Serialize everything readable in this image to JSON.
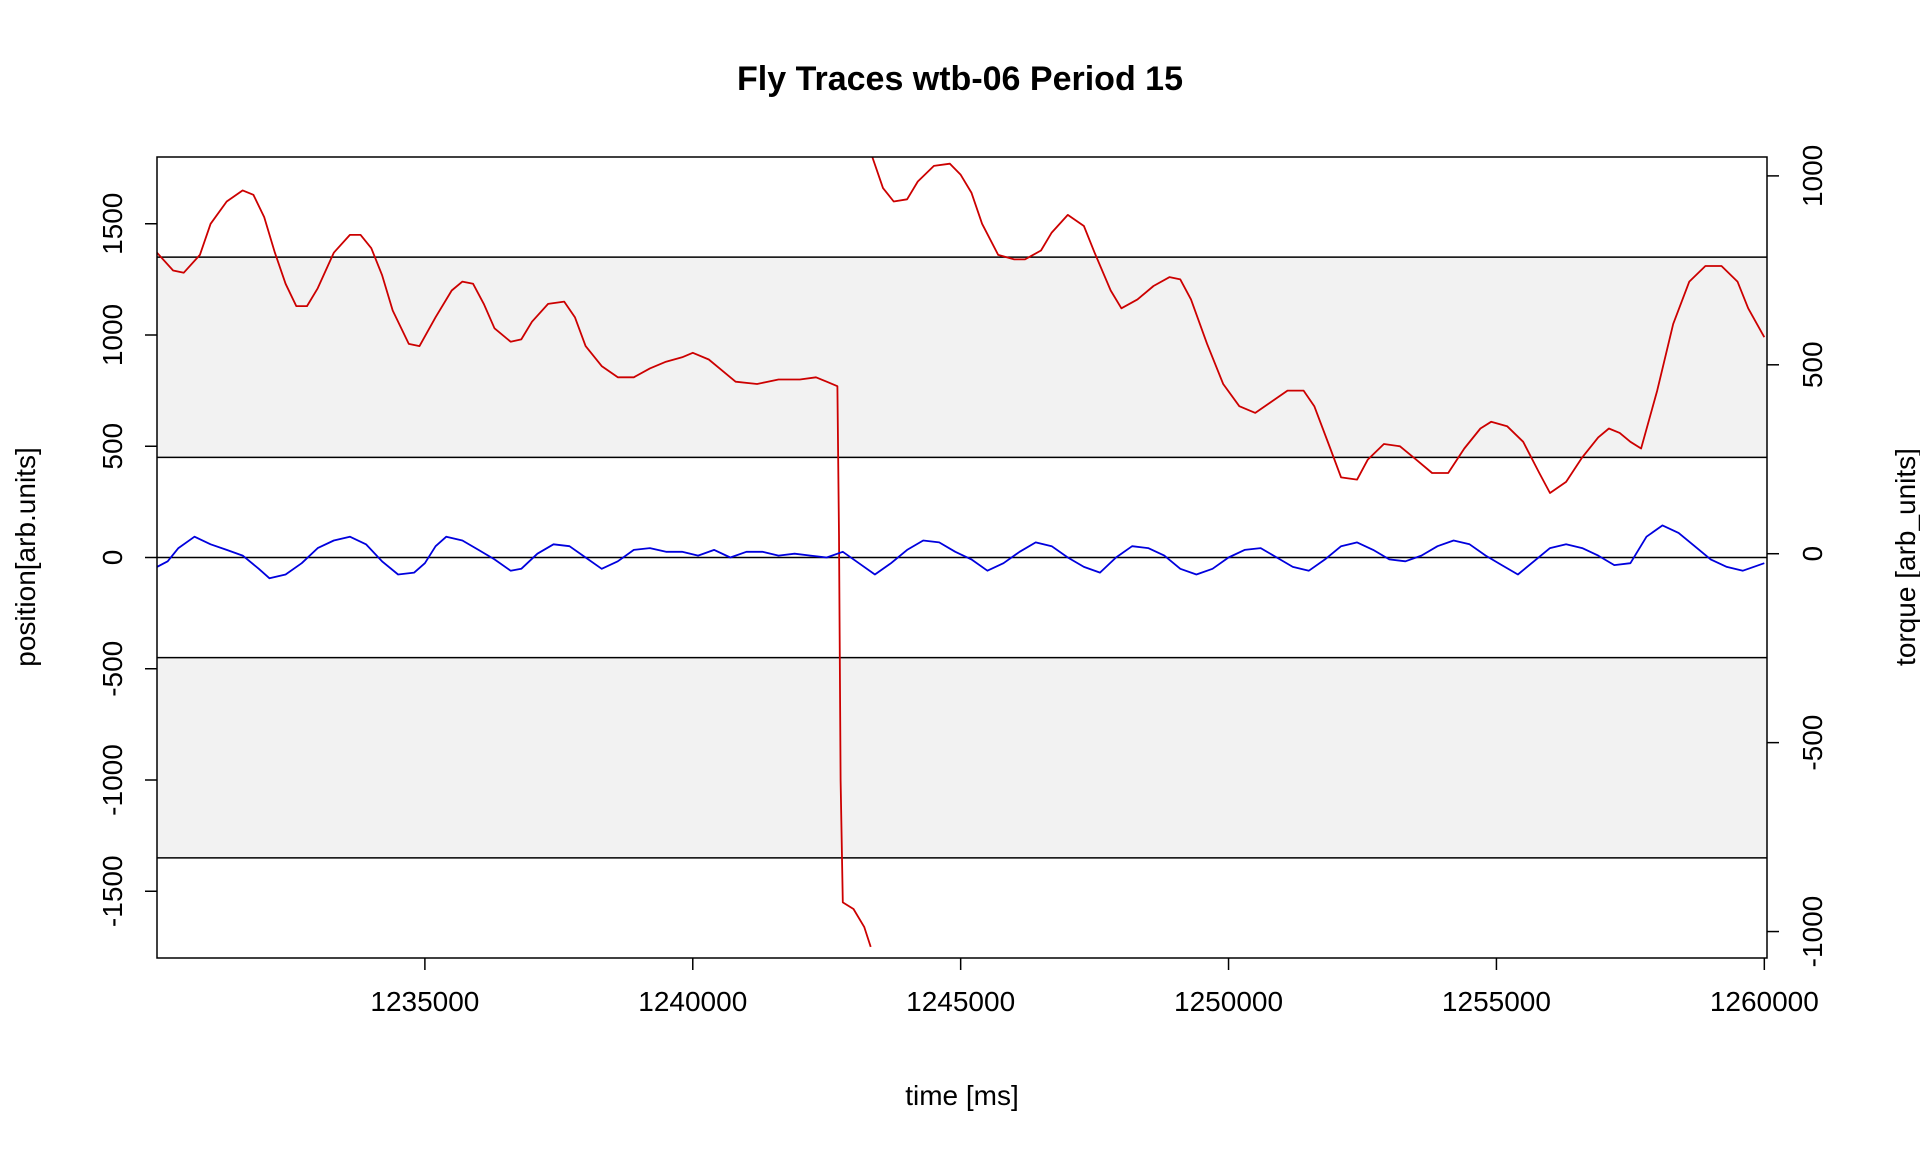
{
  "chart_data": {
    "type": "line",
    "title": "Fly Traces wtb-06 Period 15",
    "xlabel": "time [ms]",
    "ylabel_left": "position[arb.units]",
    "ylabel_right": "torque [arb_units]",
    "xlim": [
      1230000,
      1260050
    ],
    "ylim_left": [
      -1800,
      1800
    ],
    "ylim_right": [
      -1070,
      1050
    ],
    "x_ticks": [
      1235000,
      1240000,
      1245000,
      1250000,
      1255000,
      1260000
    ],
    "x_tick_labels": [
      "1235000",
      "1240000",
      "1245000",
      "1250000",
      "1255000",
      "1260000"
    ],
    "y_left_ticks": [
      -1500,
      -1000,
      -500,
      0,
      500,
      1000,
      1500
    ],
    "y_left_tick_labels": [
      "-1500",
      "-1000",
      "-500",
      "0",
      "500",
      "1000",
      "1500"
    ],
    "y_right_ticks": [
      -1000,
      -500,
      0,
      500,
      1000
    ],
    "y_right_tick_labels": [
      "-1000",
      "-500",
      "0",
      "500",
      "1000"
    ],
    "shaded_bands": [
      [
        450,
        1350
      ],
      [
        -1350,
        -450
      ]
    ],
    "horizontal_lines": [
      1350,
      450,
      0,
      -450,
      -1350
    ],
    "series": [
      {
        "name": "position",
        "color": "#cc0000",
        "axis": "left",
        "segments": [
          [
            [
              1230000,
              1370
            ],
            [
              1230300,
              1290
            ],
            [
              1230500,
              1280
            ],
            [
              1230800,
              1360
            ],
            [
              1231000,
              1500
            ],
            [
              1231300,
              1600
            ],
            [
              1231600,
              1650
            ],
            [
              1231800,
              1630
            ],
            [
              1232000,
              1530
            ],
            [
              1232200,
              1370
            ],
            [
              1232400,
              1230
            ],
            [
              1232600,
              1130
            ],
            [
              1232800,
              1130
            ],
            [
              1233000,
              1210
            ],
            [
              1233300,
              1370
            ],
            [
              1233600,
              1450
            ],
            [
              1233800,
              1450
            ],
            [
              1234000,
              1390
            ],
            [
              1234200,
              1270
            ],
            [
              1234400,
              1110
            ],
            [
              1234700,
              960
            ],
            [
              1234900,
              950
            ],
            [
              1235200,
              1080
            ],
            [
              1235500,
              1200
            ],
            [
              1235700,
              1240
            ],
            [
              1235900,
              1230
            ],
            [
              1236100,
              1140
            ],
            [
              1236300,
              1030
            ],
            [
              1236600,
              970
            ],
            [
              1236800,
              980
            ],
            [
              1237000,
              1060
            ],
            [
              1237300,
              1140
            ],
            [
              1237600,
              1150
            ],
            [
              1237800,
              1080
            ],
            [
              1238000,
              950
            ],
            [
              1238300,
              860
            ],
            [
              1238600,
              810
            ],
            [
              1238900,
              810
            ],
            [
              1239200,
              850
            ],
            [
              1239500,
              880
            ],
            [
              1239800,
              900
            ],
            [
              1240000,
              920
            ],
            [
              1240300,
              890
            ],
            [
              1240500,
              850
            ],
            [
              1240800,
              790
            ],
            [
              1241200,
              780
            ],
            [
              1241600,
              800
            ],
            [
              1242000,
              800
            ],
            [
              1242300,
              810
            ],
            [
              1242500,
              790
            ],
            [
              1242700,
              770
            ],
            [
              1242730,
              100
            ],
            [
              1242760,
              -1000
            ],
            [
              1242800,
              -1550
            ],
            [
              1243000,
              -1580
            ],
            [
              1243200,
              -1660
            ],
            [
              1243320,
              -1750
            ]
          ],
          [
            [
              1243350,
              1800
            ],
            [
              1243550,
              1660
            ],
            [
              1243750,
              1600
            ],
            [
              1244000,
              1610
            ],
            [
              1244200,
              1690
            ],
            [
              1244500,
              1760
            ],
            [
              1244800,
              1770
            ],
            [
              1245000,
              1720
            ],
            [
              1245200,
              1640
            ],
            [
              1245400,
              1500
            ],
            [
              1245700,
              1360
            ],
            [
              1246000,
              1340
            ],
            [
              1246200,
              1340
            ],
            [
              1246500,
              1380
            ],
            [
              1246700,
              1460
            ],
            [
              1247000,
              1540
            ],
            [
              1247300,
              1490
            ],
            [
              1247500,
              1370
            ],
            [
              1247800,
              1200
            ],
            [
              1248000,
              1120
            ],
            [
              1248300,
              1160
            ],
            [
              1248600,
              1220
            ],
            [
              1248900,
              1260
            ],
            [
              1249100,
              1250
            ],
            [
              1249300,
              1160
            ],
            [
              1249600,
              960
            ],
            [
              1249900,
              780
            ],
            [
              1250200,
              680
            ],
            [
              1250500,
              650
            ],
            [
              1250800,
              700
            ],
            [
              1251100,
              750
            ],
            [
              1251400,
              750
            ],
            [
              1251600,
              680
            ],
            [
              1251900,
              490
            ],
            [
              1252100,
              360
            ],
            [
              1252400,
              350
            ],
            [
              1252600,
              440
            ],
            [
              1252900,
              510
            ],
            [
              1253200,
              500
            ],
            [
              1253500,
              440
            ],
            [
              1253800,
              380
            ],
            [
              1254100,
              380
            ],
            [
              1254400,
              490
            ],
            [
              1254700,
              580
            ],
            [
              1254900,
              610
            ],
            [
              1255200,
              590
            ],
            [
              1255500,
              520
            ],
            [
              1255800,
              380
            ],
            [
              1256000,
              290
            ],
            [
              1256300,
              340
            ],
            [
              1256600,
              450
            ],
            [
              1256900,
              540
            ],
            [
              1257100,
              580
            ],
            [
              1257300,
              560
            ],
            [
              1257500,
              520
            ],
            [
              1257700,
              490
            ],
            [
              1258000,
              750
            ],
            [
              1258300,
              1050
            ],
            [
              1258600,
              1240
            ],
            [
              1258900,
              1310
            ],
            [
              1259200,
              1310
            ],
            [
              1259500,
              1240
            ],
            [
              1259700,
              1120
            ],
            [
              1260000,
              990
            ]
          ]
        ]
      },
      {
        "name": "torque",
        "color": "#0000dd",
        "axis": "right",
        "segments": [
          [
            [
              1230000,
              -35
            ],
            [
              1230200,
              -20
            ],
            [
              1230400,
              15
            ],
            [
              1230700,
              45
            ],
            [
              1231000,
              25
            ],
            [
              1231300,
              10
            ],
            [
              1231600,
              -5
            ],
            [
              1231900,
              -40
            ],
            [
              1232100,
              -65
            ],
            [
              1232400,
              -55
            ],
            [
              1232700,
              -25
            ],
            [
              1233000,
              15
            ],
            [
              1233300,
              35
            ],
            [
              1233600,
              45
            ],
            [
              1233900,
              25
            ],
            [
              1234200,
              -20
            ],
            [
              1234500,
              -55
            ],
            [
              1234800,
              -50
            ],
            [
              1235000,
              -25
            ],
            [
              1235200,
              20
            ],
            [
              1235400,
              45
            ],
            [
              1235700,
              35
            ],
            [
              1236000,
              10
            ],
            [
              1236300,
              -15
            ],
            [
              1236600,
              -45
            ],
            [
              1236800,
              -40
            ],
            [
              1237100,
              0
            ],
            [
              1237400,
              25
            ],
            [
              1237700,
              20
            ],
            [
              1238000,
              -10
            ],
            [
              1238300,
              -40
            ],
            [
              1238600,
              -20
            ],
            [
              1238900,
              10
            ],
            [
              1239200,
              15
            ],
            [
              1239500,
              5
            ],
            [
              1239800,
              5
            ],
            [
              1240100,
              -5
            ],
            [
              1240400,
              10
            ],
            [
              1240700,
              -10
            ],
            [
              1241000,
              5
            ],
            [
              1241300,
              5
            ],
            [
              1241600,
              -5
            ],
            [
              1241900,
              0
            ],
            [
              1242200,
              -5
            ],
            [
              1242500,
              -10
            ],
            [
              1242800,
              5
            ],
            [
              1243100,
              -25
            ],
            [
              1243400,
              -55
            ],
            [
              1243700,
              -25
            ],
            [
              1244000,
              10
            ],
            [
              1244300,
              35
            ],
            [
              1244600,
              30
            ],
            [
              1244900,
              5
            ],
            [
              1245200,
              -15
            ],
            [
              1245500,
              -45
            ],
            [
              1245800,
              -25
            ],
            [
              1246100,
              5
            ],
            [
              1246400,
              30
            ],
            [
              1246700,
              20
            ],
            [
              1247000,
              -10
            ],
            [
              1247300,
              -35
            ],
            [
              1247600,
              -50
            ],
            [
              1247900,
              -10
            ],
            [
              1248200,
              20
            ],
            [
              1248500,
              15
            ],
            [
              1248800,
              -5
            ],
            [
              1249100,
              -40
            ],
            [
              1249400,
              -55
            ],
            [
              1249700,
              -40
            ],
            [
              1250000,
              -10
            ],
            [
              1250300,
              10
            ],
            [
              1250600,
              15
            ],
            [
              1250900,
              -10
            ],
            [
              1251200,
              -35
            ],
            [
              1251500,
              -45
            ],
            [
              1251800,
              -15
            ],
            [
              1252100,
              20
            ],
            [
              1252400,
              30
            ],
            [
              1252700,
              10
            ],
            [
              1253000,
              -15
            ],
            [
              1253300,
              -20
            ],
            [
              1253600,
              -5
            ],
            [
              1253900,
              20
            ],
            [
              1254200,
              35
            ],
            [
              1254500,
              25
            ],
            [
              1254800,
              -5
            ],
            [
              1255100,
              -30
            ],
            [
              1255400,
              -55
            ],
            [
              1255700,
              -20
            ],
            [
              1256000,
              15
            ],
            [
              1256300,
              25
            ],
            [
              1256600,
              15
            ],
            [
              1256900,
              -5
            ],
            [
              1257200,
              -30
            ],
            [
              1257500,
              -25
            ],
            [
              1257800,
              45
            ],
            [
              1258100,
              75
            ],
            [
              1258400,
              55
            ],
            [
              1258700,
              20
            ],
            [
              1259000,
              -15
            ],
            [
              1259300,
              -35
            ],
            [
              1259600,
              -45
            ],
            [
              1260000,
              -25
            ]
          ]
        ]
      }
    ]
  }
}
